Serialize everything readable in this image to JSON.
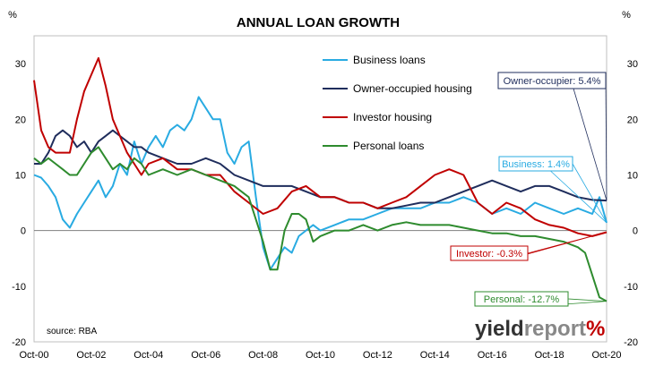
{
  "chart_data": {
    "type": "line",
    "title": "ANNUAL LOAN GROWTH",
    "ylabel_left": "%",
    "ylabel_right": "%",
    "ylim": [
      -20,
      35
    ],
    "yticks": [
      -20,
      -10,
      0,
      10,
      20,
      30
    ],
    "xlim": [
      "2000-10",
      "2020-10"
    ],
    "xtick_labels": [
      "Oct-00",
      "Oct-02",
      "Oct-04",
      "Oct-06",
      "Oct-08",
      "Oct-10",
      "Oct-12",
      "Oct-14",
      "Oct-16",
      "Oct-18",
      "Oct-20"
    ],
    "grid": false,
    "legend_position": "top-center",
    "source": "source: RBA",
    "watermark": {
      "part1": "yield",
      "part2": "report",
      "symbol": "%"
    },
    "series": [
      {
        "name": "Business loans",
        "color": "#29ABE2",
        "x": [
          "2000-10",
          "2001-01",
          "2001-04",
          "2001-07",
          "2001-10",
          "2002-01",
          "2002-04",
          "2002-07",
          "2002-10",
          "2003-01",
          "2003-04",
          "2003-07",
          "2003-10",
          "2004-01",
          "2004-04",
          "2004-07",
          "2004-10",
          "2005-01",
          "2005-04",
          "2005-07",
          "2005-10",
          "2006-01",
          "2006-04",
          "2006-07",
          "2006-10",
          "2007-01",
          "2007-04",
          "2007-07",
          "2007-10",
          "2008-01",
          "2008-04",
          "2008-07",
          "2008-10",
          "2009-01",
          "2009-04",
          "2009-07",
          "2009-10",
          "2010-01",
          "2010-04",
          "2010-07",
          "2010-10",
          "2011-04",
          "2011-10",
          "2012-04",
          "2012-10",
          "2013-04",
          "2013-10",
          "2014-04",
          "2014-10",
          "2015-04",
          "2015-10",
          "2016-04",
          "2016-10",
          "2017-04",
          "2017-10",
          "2018-04",
          "2018-10",
          "2019-04",
          "2019-10",
          "2020-04",
          "2020-07",
          "2020-10"
        ],
        "values": [
          10,
          9.5,
          8,
          6,
          2,
          0.5,
          3,
          5,
          7,
          9,
          6,
          8,
          12,
          10,
          16,
          12,
          15,
          17,
          15,
          18,
          19,
          18,
          20,
          24,
          22,
          20,
          20,
          14,
          12,
          15,
          16,
          6,
          -3,
          -7,
          -5,
          -3,
          -4,
          -1,
          0,
          1,
          0,
          1,
          2,
          2,
          3,
          4,
          4,
          4,
          5,
          5,
          6,
          5,
          3,
          4,
          3,
          5,
          4,
          3,
          4,
          3,
          6,
          1.4
        ]
      },
      {
        "name": "Owner-occupied housing",
        "color": "#1F2D5C",
        "x": [
          "2000-10",
          "2001-01",
          "2001-04",
          "2001-07",
          "2001-10",
          "2002-01",
          "2002-04",
          "2002-07",
          "2002-10",
          "2003-01",
          "2003-04",
          "2003-07",
          "2003-10",
          "2004-01",
          "2004-04",
          "2004-07",
          "2004-10",
          "2005-04",
          "2005-10",
          "2006-04",
          "2006-10",
          "2007-04",
          "2007-10",
          "2008-04",
          "2008-10",
          "2009-04",
          "2009-10",
          "2010-04",
          "2010-10",
          "2011-04",
          "2011-10",
          "2012-04",
          "2012-10",
          "2013-04",
          "2013-10",
          "2014-04",
          "2014-10",
          "2015-04",
          "2015-10",
          "2016-04",
          "2016-10",
          "2017-04",
          "2017-10",
          "2018-04",
          "2018-10",
          "2019-04",
          "2019-10",
          "2020-04",
          "2020-10"
        ],
        "values": [
          12,
          12,
          14,
          17,
          18,
          17,
          15,
          16,
          14,
          16,
          17,
          18,
          17,
          16,
          15,
          15,
          14,
          13,
          12,
          12,
          13,
          12,
          10,
          9,
          8,
          8,
          8,
          7,
          6,
          6,
          5,
          5,
          4,
          4,
          4.5,
          5,
          5,
          6,
          7,
          8,
          9,
          8,
          7,
          8,
          8,
          7,
          6,
          5.5,
          5.4
        ]
      },
      {
        "name": "Investor housing",
        "color": "#C00000",
        "x": [
          "2000-10",
          "2001-01",
          "2001-04",
          "2001-07",
          "2001-10",
          "2002-01",
          "2002-04",
          "2002-07",
          "2002-10",
          "2003-01",
          "2003-04",
          "2003-07",
          "2003-10",
          "2004-01",
          "2004-04",
          "2004-07",
          "2004-10",
          "2005-04",
          "2005-10",
          "2006-04",
          "2006-10",
          "2007-04",
          "2007-10",
          "2008-04",
          "2008-10",
          "2009-04",
          "2009-10",
          "2010-04",
          "2010-10",
          "2011-04",
          "2011-10",
          "2012-04",
          "2012-10",
          "2013-04",
          "2013-10",
          "2014-04",
          "2014-10",
          "2015-04",
          "2015-10",
          "2016-04",
          "2016-10",
          "2017-04",
          "2017-10",
          "2018-04",
          "2018-10",
          "2019-04",
          "2019-10",
          "2020-04",
          "2020-10"
        ],
        "values": [
          27,
          18,
          15,
          14,
          14,
          14,
          20,
          25,
          28,
          31,
          26,
          20,
          17,
          14,
          12,
          10,
          12,
          13,
          11,
          11,
          10,
          10,
          7,
          5,
          3,
          4,
          7,
          8,
          6,
          6,
          5,
          5,
          4,
          5,
          6,
          8,
          10,
          11,
          10,
          5,
          3,
          5,
          4,
          2,
          1,
          0.5,
          -0.5,
          -1,
          -0.3
        ]
      },
      {
        "name": "Personal loans",
        "color": "#2E8B2E",
        "x": [
          "2000-10",
          "2001-01",
          "2001-04",
          "2001-07",
          "2001-10",
          "2002-01",
          "2002-04",
          "2002-07",
          "2002-10",
          "2003-01",
          "2003-04",
          "2003-07",
          "2003-10",
          "2004-01",
          "2004-04",
          "2004-07",
          "2004-10",
          "2005-04",
          "2005-10",
          "2006-04",
          "2006-10",
          "2007-04",
          "2007-10",
          "2008-04",
          "2008-10",
          "2009-01",
          "2009-04",
          "2009-07",
          "2009-10",
          "2010-01",
          "2010-04",
          "2010-07",
          "2010-10",
          "2011-04",
          "2011-10",
          "2012-04",
          "2012-10",
          "2013-04",
          "2013-10",
          "2014-04",
          "2014-10",
          "2015-04",
          "2015-10",
          "2016-04",
          "2016-10",
          "2017-04",
          "2017-10",
          "2018-04",
          "2018-10",
          "2019-04",
          "2019-10",
          "2020-01",
          "2020-04",
          "2020-07",
          "2020-10"
        ],
        "values": [
          13,
          12,
          13,
          12,
          11,
          10,
          10,
          12,
          14,
          15,
          13,
          11,
          12,
          11,
          13,
          12,
          10,
          11,
          10,
          11,
          10,
          9,
          8,
          6,
          -2,
          -7,
          -7,
          0,
          3,
          3,
          2,
          -2,
          -1,
          0,
          0,
          1,
          0,
          1,
          1.5,
          1,
          1,
          1,
          0.5,
          0,
          -0.5,
          -0.5,
          -1,
          -1,
          -1.5,
          -2,
          -3,
          -4,
          -8,
          -12,
          -12.7
        ]
      }
    ],
    "annotations": [
      {
        "text": "Owner-occupier: 5.4%",
        "color": "#1F2D5C",
        "series": "Owner-occupied housing",
        "value": 5.4
      },
      {
        "text": "Business: 1.4%",
        "color": "#29ABE2",
        "series": "Business loans",
        "value": 1.4
      },
      {
        "text": "Investor:  -0.3%",
        "color": "#C00000",
        "series": "Investor housing",
        "value": -0.3
      },
      {
        "text": "Personal: -12.7%",
        "color": "#2E8B2E",
        "series": "Personal loans",
        "value": -12.7
      }
    ]
  }
}
